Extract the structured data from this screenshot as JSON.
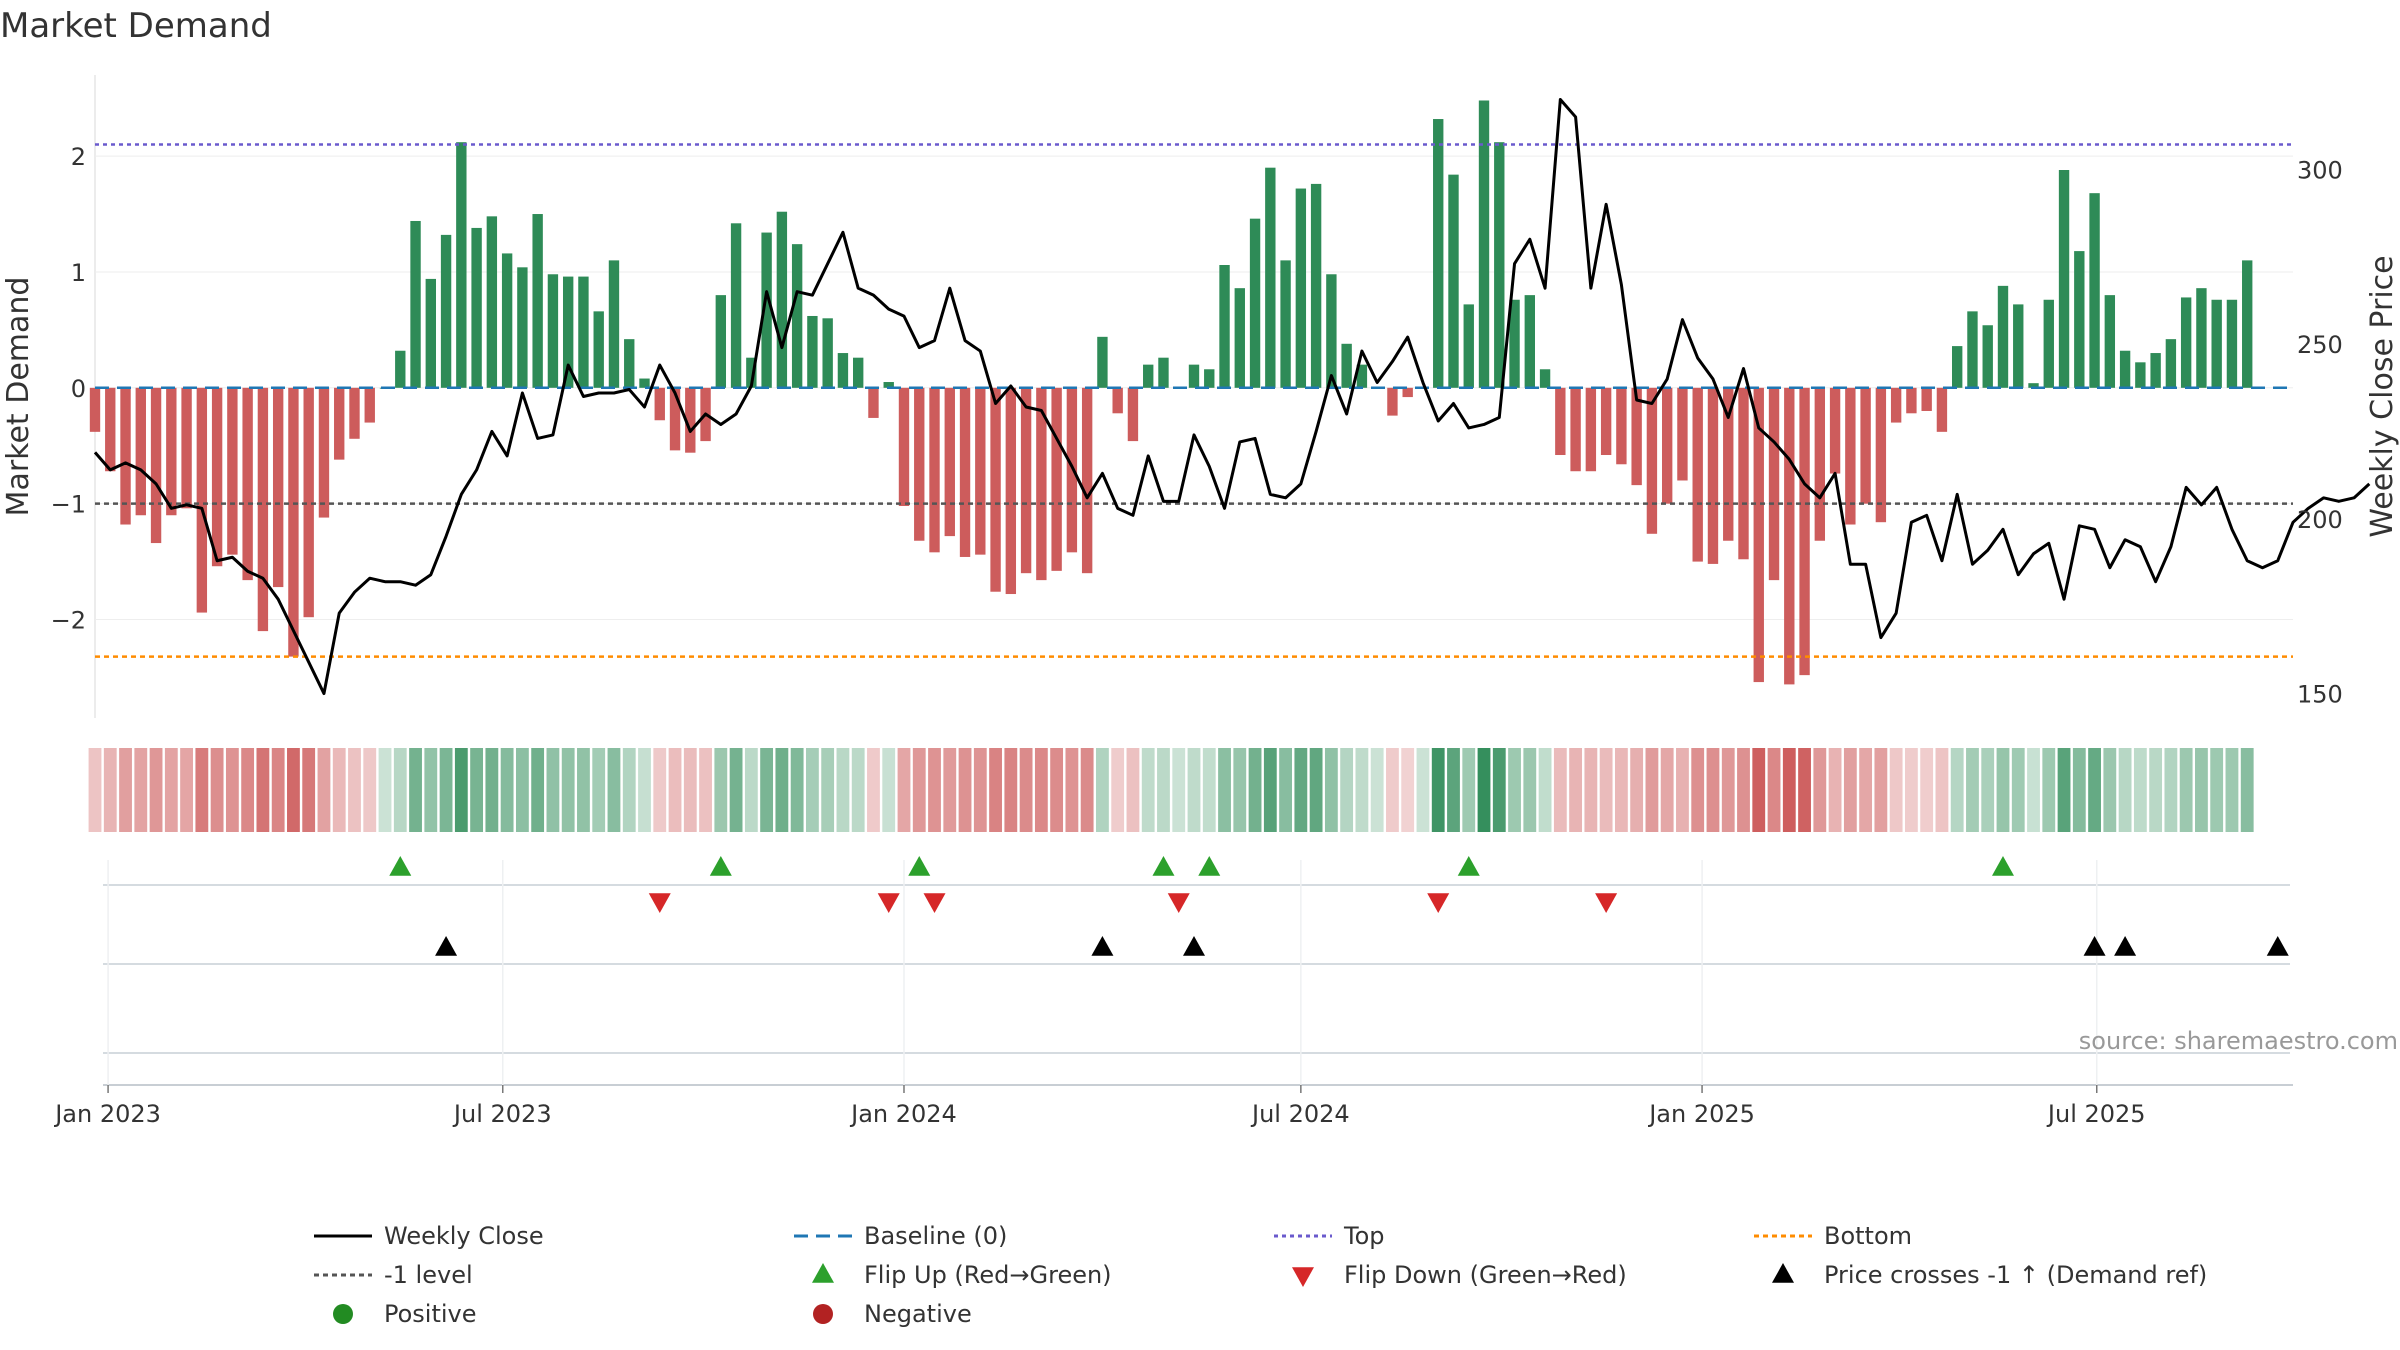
{
  "chart_data": {
    "type": "bar+line",
    "title": "Market Demand",
    "ylabel_left": "Market Demand",
    "ylabel_right": "Weekly Close Price",
    "ylim_left": [
      -2.85,
      2.7
    ],
    "ylim_right": [
      143,
      327
    ],
    "yticks_left": [
      -2,
      -1,
      0,
      1,
      2
    ],
    "yticks_left_labels": [
      "−2",
      "−1",
      "0",
      "1",
      "2"
    ],
    "yticks_right": [
      150,
      200,
      250,
      300
    ],
    "yticks_right_labels": [
      "150",
      "200",
      "250",
      "300"
    ],
    "x_date_range": [
      "2022-12-26",
      "2025-09-29"
    ],
    "xticks": [
      {
        "date": "2023-01-01",
        "label": "Jan 2023"
      },
      {
        "date": "2023-07-01",
        "label": "Jul 2023"
      },
      {
        "date": "2024-01-01",
        "label": "Jan 2024"
      },
      {
        "date": "2024-07-01",
        "label": "Jul 2024"
      },
      {
        "date": "2025-01-01",
        "label": "Jan 2025"
      },
      {
        "date": "2025-07-01",
        "label": "Jul 2025"
      }
    ],
    "start_week": "2022-12-26",
    "levels": {
      "top": 2.1,
      "bottom": -2.32,
      "minus_one": -1,
      "baseline": 0
    },
    "demand": [
      -0.38,
      -0.72,
      -1.18,
      -1.1,
      -1.34,
      -1.1,
      -1.04,
      -1.94,
      -1.54,
      -1.44,
      -1.66,
      -2.1,
      -1.72,
      -2.32,
      -1.98,
      -1.12,
      -0.62,
      -0.44,
      -0.3,
      0.0,
      0.32,
      1.44,
      0.94,
      1.32,
      2.12,
      1.38,
      1.48,
      1.16,
      1.04,
      1.5,
      0.98,
      0.96,
      0.96,
      0.66,
      1.1,
      0.42,
      0.08,
      -0.28,
      -0.54,
      -0.56,
      -0.46,
      0.8,
      1.42,
      0.26,
      1.34,
      1.52,
      1.24,
      0.62,
      0.6,
      0.3,
      0.26,
      -0.26,
      0.05,
      -1.02,
      -1.32,
      -1.42,
      -1.28,
      -1.46,
      -1.44,
      -1.76,
      -1.78,
      -1.6,
      -1.66,
      -1.58,
      -1.42,
      -1.6,
      0.44,
      -0.22,
      -0.46,
      0.2,
      0.26,
      0.0,
      0.2,
      0.16,
      1.06,
      0.86,
      1.46,
      1.9,
      1.1,
      1.72,
      1.76,
      0.98,
      0.38,
      0.2,
      0.0,
      -0.24,
      -0.08,
      0.0,
      2.32,
      1.84,
      0.72,
      2.48,
      2.12,
      0.76,
      0.8,
      0.16,
      -0.58,
      -0.72,
      -0.72,
      -0.58,
      -0.66,
      -0.84,
      -1.26,
      -1.0,
      -0.8,
      -1.5,
      -1.52,
      -1.32,
      -1.48,
      -2.54,
      -1.66,
      -2.56,
      -2.48,
      -1.32,
      -0.74,
      -1.18,
      -1.0,
      -1.16,
      -0.3,
      -0.22,
      -0.2,
      -0.38,
      0.36,
      0.66,
      0.54,
      0.88,
      0.72,
      0.04,
      0.76,
      1.88,
      1.18,
      1.68,
      0.8,
      0.32,
      0.22,
      0.3,
      0.42,
      0.78,
      0.86,
      0.76,
      0.76,
      1.1
    ],
    "price": [
      219,
      214,
      216,
      214,
      210,
      203,
      204,
      203,
      188,
      189,
      185,
      183,
      177,
      168,
      159,
      150,
      173,
      179,
      183,
      182,
      182,
      181,
      184,
      195,
      207,
      214,
      225,
      218,
      236,
      223,
      224,
      244,
      235,
      236,
      236,
      237,
      232,
      244,
      236,
      225,
      230,
      227,
      230,
      238,
      265,
      249,
      265,
      264,
      273,
      282,
      266,
      264,
      260,
      258,
      249,
      251,
      266,
      251,
      248,
      233,
      238,
      232,
      231,
      223,
      215,
      206,
      213,
      203,
      201,
      218,
      205,
      205,
      224,
      215,
      203,
      222,
      223,
      207,
      206,
      210,
      225,
      241,
      230,
      248,
      239,
      245,
      252,
      239,
      228,
      233,
      226,
      227,
      229,
      273,
      280,
      266,
      320,
      315,
      266,
      290,
      267,
      234,
      233,
      240,
      257,
      246,
      240,
      229,
      243,
      226,
      222,
      217,
      210,
      206,
      213,
      187,
      187,
      166,
      173,
      199,
      201,
      188,
      207,
      187,
      191,
      197,
      184,
      190,
      193,
      177,
      198,
      197,
      186,
      194,
      192,
      182,
      192,
      209,
      204,
      209,
      197,
      188,
      186,
      188,
      199,
      203,
      206,
      205,
      206,
      210
    ],
    "flip_up_weeks": [
      20,
      41,
      54,
      70,
      73,
      90,
      125
    ],
    "flip_down_weeks": [
      37,
      52,
      55,
      71,
      88,
      99
    ],
    "price_cross_weeks": [
      23,
      66,
      72,
      131,
      133,
      143
    ],
    "strip_rows": [
      "signal_flips",
      "price_crosses",
      "empty"
    ]
  },
  "source": "source: sharemaestro.com",
  "colors": {
    "pos_bar": "#2e8b57",
    "neg_bar": "#cd5c5c",
    "price_line": "#000000",
    "baseline": "#1f77b4",
    "top": "#6a5acd",
    "bottom": "#ff8c00",
    "minus_one": "#555555",
    "flip_up": "#2ca02c",
    "flip_down": "#d62728",
    "cross": "#000000",
    "positive_dot": "#228b22",
    "negative_dot": "#b22222"
  },
  "legend": {
    "weekly_close": "Weekly Close",
    "baseline": "Baseline (0)",
    "top": "Top",
    "bottom": "Bottom",
    "minus_one": "-1 level",
    "flip_up": "Flip Up (Red→Green)",
    "flip_down": "Flip Down (Green→Red)",
    "price_cross": "Price crosses -1 ↑ (Demand ref)",
    "positive": "Positive",
    "negative": "Negative"
  }
}
